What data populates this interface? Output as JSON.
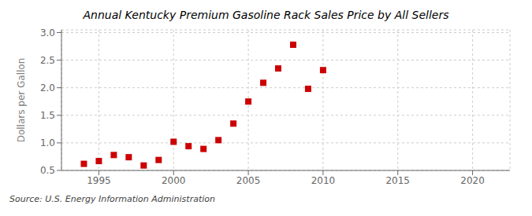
{
  "chart_data": {
    "type": "scatter",
    "title": "Annual Kentucky Premium Gasoline Rack Sales Price by All Sellers",
    "y_label": "Dollars per Gallon",
    "annotations": [
      "Source: U.S. Energy Information Administration"
    ],
    "x": [
      1994,
      1995,
      1996,
      1997,
      1998,
      1999,
      2000,
      2001,
      2002,
      2003,
      2004,
      2005,
      2006,
      2007,
      2008,
      2009,
      2010
    ],
    "values": [
      0.62,
      0.67,
      0.78,
      0.74,
      0.59,
      0.69,
      1.02,
      0.94,
      0.89,
      1.05,
      1.35,
      1.75,
      2.09,
      2.35,
      2.78,
      1.98,
      2.32
    ],
    "color": "#cc0000",
    "marker": "square",
    "xlim": [
      1992.5,
      2022.5
    ],
    "ylim": [
      0.5,
      3.05
    ],
    "xticks": [
      1995,
      2000,
      2005,
      2010,
      2015,
      2020
    ],
    "yticks": [
      0.5,
      {
        "value": 1,
        "label": "1.0"
      },
      1.5,
      {
        "value": 2,
        "label": "2.0"
      },
      2.5,
      {
        "value": 3,
        "label": "3.0"
      }
    ],
    "grid": true
  }
}
